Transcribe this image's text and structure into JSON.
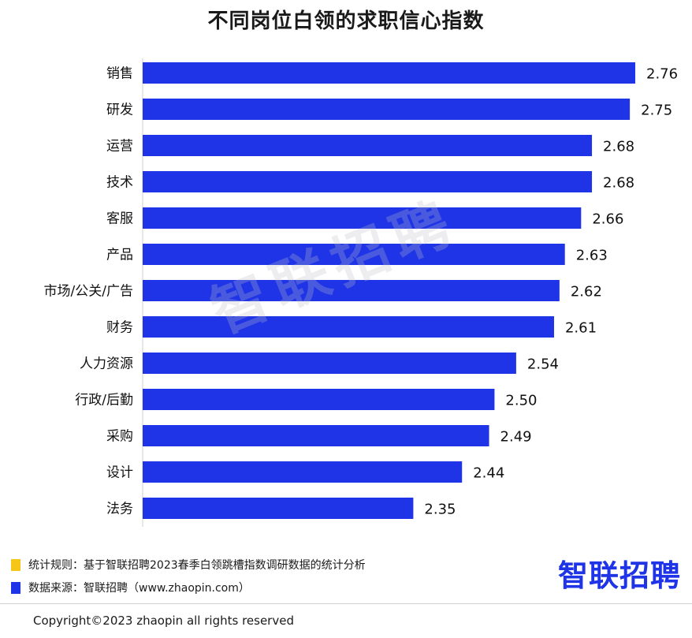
{
  "title": "不同岗位白领的求职信心指数",
  "watermark": "智联招聘",
  "logo": "智联招聘",
  "legend": [
    {
      "text": "统计规则：基于智联招聘2023春季白领跳槽指数调研数据的统计分析",
      "color": "#f5c518"
    },
    {
      "text": "数据来源：智联招聘（www.zhaopin.com）",
      "color": "#1e34e6"
    }
  ],
  "copyright": "Copyright©2023 zhaopin all rights reserved",
  "colors": {
    "bar": "#1e34e6"
  },
  "chart_data": {
    "type": "bar",
    "orientation": "horizontal",
    "title": "不同岗位白领的求职信心指数",
    "categories": [
      "销售",
      "研发",
      "运营",
      "技术",
      "客服",
      "产品",
      "市场/公关/广告",
      "财务",
      "人力资源",
      "行政/后勤",
      "采购",
      "设计",
      "法务"
    ],
    "values": [
      2.76,
      2.75,
      2.68,
      2.68,
      2.66,
      2.63,
      2.62,
      2.61,
      2.54,
      2.5,
      2.49,
      2.44,
      2.35
    ],
    "value_labels": [
      "2.76",
      "2.75",
      "2.68",
      "2.68",
      "2.66",
      "2.63",
      "2.62",
      "2.61",
      "2.54",
      "2.50",
      "2.49",
      "2.44",
      "2.35"
    ],
    "xlabel": "",
    "ylabel": "",
    "grid": false
  }
}
